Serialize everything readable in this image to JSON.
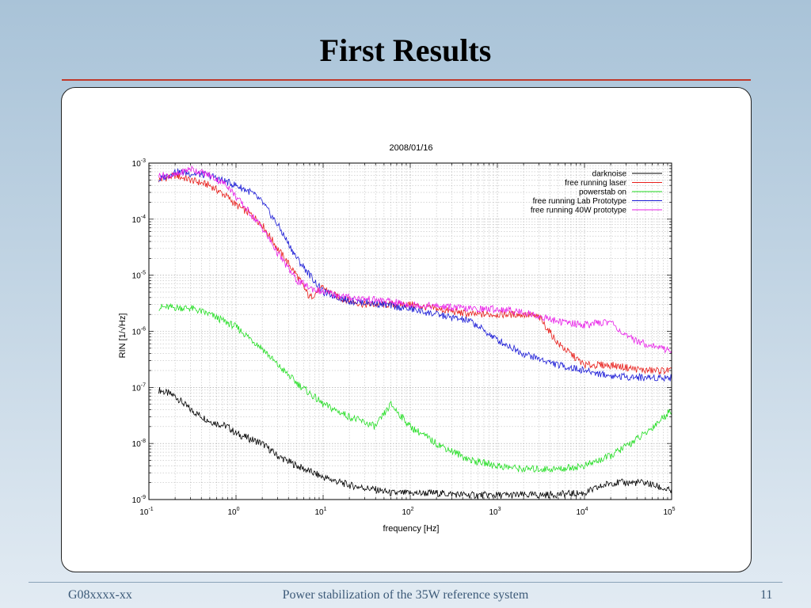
{
  "slide": {
    "title": "First Results",
    "footer_left": "G08xxxx-xx",
    "footer_center": "Power stabilization of the 35W reference system",
    "page_number": "11"
  },
  "chart_data": {
    "type": "line",
    "title": "2008/01/16",
    "xlabel": "frequency [Hz]",
    "ylabel": "RIN [1/√Hz]",
    "x_scale": "log",
    "y_scale": "log",
    "xlim": [
      0.1,
      100000
    ],
    "ylim": [
      1e-09,
      0.001
    ],
    "x_ticks": [
      {
        "base": "10",
        "exp": "-1"
      },
      {
        "base": "10",
        "exp": "0"
      },
      {
        "base": "10",
        "exp": "1"
      },
      {
        "base": "10",
        "exp": "2"
      },
      {
        "base": "10",
        "exp": "3"
      },
      {
        "base": "10",
        "exp": "4"
      },
      {
        "base": "10",
        "exp": "5"
      }
    ],
    "y_ticks": [
      {
        "base": "10",
        "exp": "-9"
      },
      {
        "base": "10",
        "exp": "-8"
      },
      {
        "base": "10",
        "exp": "-7"
      },
      {
        "base": "10",
        "exp": "-6"
      },
      {
        "base": "10",
        "exp": "-5"
      },
      {
        "base": "10",
        "exp": "-4"
      },
      {
        "base": "10",
        "exp": "-3"
      }
    ],
    "grid": true,
    "legend_position": "top-right",
    "series": [
      {
        "name": "darknoise",
        "color": "#000000",
        "x": [
          0.13,
          0.2,
          0.3,
          0.5,
          0.8,
          1,
          2,
          3,
          5,
          10,
          20,
          40,
          50,
          60,
          100,
          200,
          500,
          1000,
          3000,
          10000,
          20000,
          50000,
          100000
        ],
        "y": [
          9e-08,
          7e-08,
          4e-08,
          2.5e-08,
          2e-08,
          1.5e-08,
          1e-08,
          6e-09,
          4e-09,
          2.5e-09,
          1.8e-09,
          1.5e-09,
          1.4e-09,
          1.3e-09,
          1.3e-09,
          1.3e-09,
          1.2e-09,
          1.2e-09,
          1.2e-09,
          1.3e-09,
          2e-09,
          2e-09,
          1.4e-09
        ]
      },
      {
        "name": "free running laser",
        "color": "#e8201c",
        "x": [
          0.13,
          0.2,
          0.3,
          0.5,
          0.8,
          1,
          1.5,
          2,
          3,
          5,
          7,
          10,
          15,
          20,
          30,
          50,
          100,
          200,
          500,
          1000,
          2000,
          3000,
          5000,
          10000,
          20000,
          50000,
          100000
        ],
        "y": [
          0.0005,
          0.0006,
          0.0005,
          0.0004,
          0.00025,
          0.00018,
          0.00012,
          8e-05,
          3e-05,
          1e-05,
          4e-06,
          6e-06,
          4e-06,
          3.5e-06,
          3e-06,
          3e-06,
          3e-06,
          2.5e-06,
          2e-06,
          2e-06,
          2e-06,
          1.8e-06,
          6e-07,
          2.5e-07,
          2.5e-07,
          2e-07,
          2e-07
        ]
      },
      {
        "name": "powerstab on",
        "color": "#22dd22",
        "x": [
          0.13,
          0.3,
          0.5,
          1,
          2,
          3,
          5,
          10,
          20,
          40,
          60,
          100,
          200,
          500,
          1000,
          2000,
          5000,
          10000,
          20000,
          50000,
          100000
        ],
        "y": [
          2.7e-06,
          2.6e-06,
          2e-06,
          1.2e-06,
          5e-07,
          2.5e-07,
          1.2e-07,
          5e-08,
          3e-08,
          2e-08,
          5e-08,
          2e-08,
          1e-08,
          5e-09,
          4e-09,
          3.5e-09,
          3.5e-09,
          4e-09,
          6e-09,
          1.5e-08,
          4e-08
        ]
      },
      {
        "name": "free running Lab Prototype",
        "color": "#1a1ad6",
        "x": [
          0.13,
          0.2,
          0.5,
          1,
          1.5,
          2,
          3,
          5,
          10,
          20,
          50,
          100,
          200,
          500,
          1000,
          2000,
          5000,
          10000,
          20000,
          50000,
          100000
        ],
        "y": [
          0.0005,
          0.0007,
          0.0006,
          0.0004,
          0.0003,
          0.0002,
          8e-05,
          2e-05,
          5e-06,
          3.5e-06,
          3e-06,
          2.5e-06,
          2e-06,
          1.5e-06,
          7e-07,
          4e-07,
          2.5e-07,
          2e-07,
          1.6e-07,
          1.5e-07,
          1.5e-07
        ]
      },
      {
        "name": "free running 40W prototype",
        "color": "#e81ee8",
        "x": [
          0.13,
          0.2,
          0.3,
          0.5,
          0.8,
          1,
          1.5,
          2,
          3,
          5,
          7,
          10,
          20,
          50,
          100,
          200,
          500,
          1000,
          2000,
          5000,
          10000,
          20000,
          30000,
          50000,
          100000
        ],
        "y": [
          0.0006,
          0.0006,
          0.0008,
          0.0006,
          0.0004,
          0.00025,
          0.00012,
          7e-05,
          2.5e-05,
          8e-06,
          6e-06,
          5e-06,
          4e-06,
          3.5e-06,
          3e-06,
          2.8e-06,
          2.5e-06,
          2.5e-06,
          2.2e-06,
          1.5e-06,
          1.3e-06,
          1.5e-06,
          8e-07,
          6e-07,
          4.5e-07
        ]
      }
    ]
  }
}
